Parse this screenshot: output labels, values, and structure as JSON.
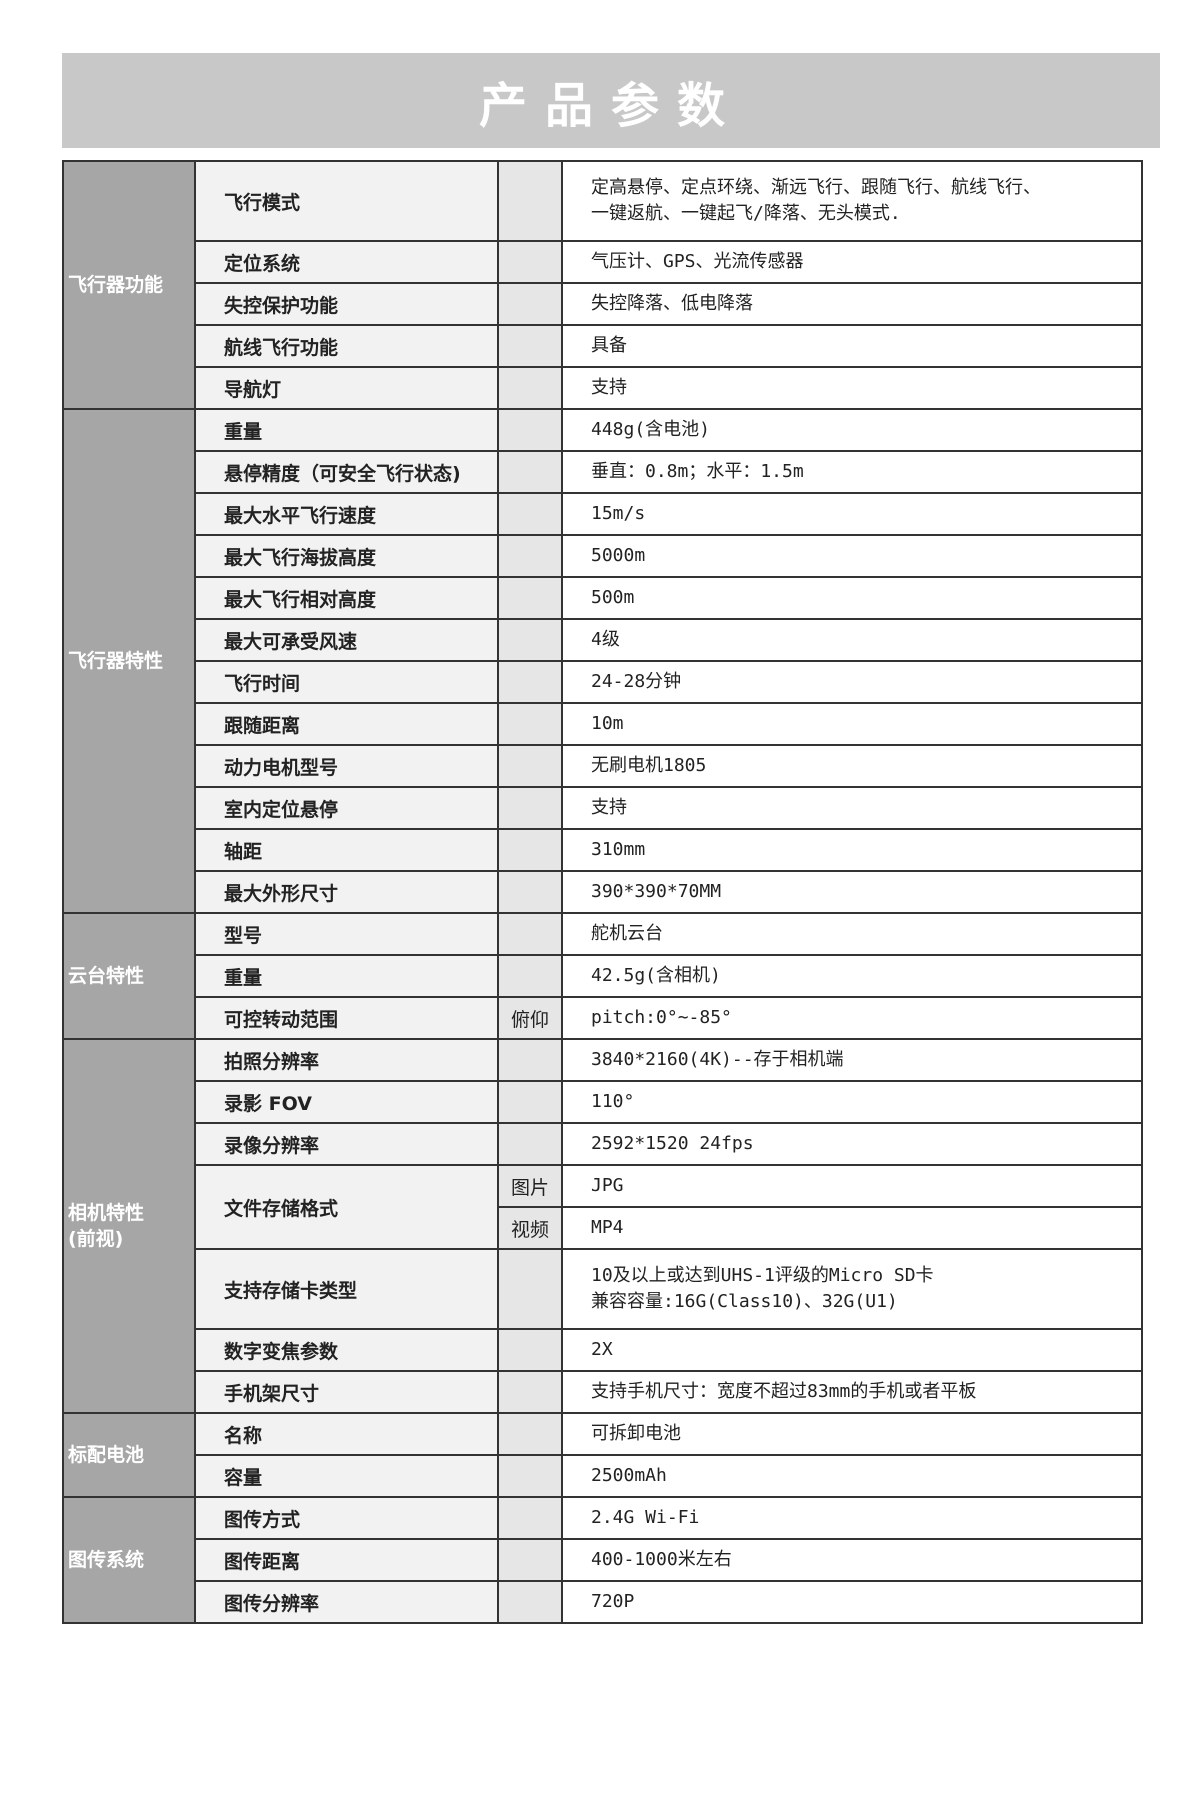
{
  "title": "产品参数",
  "groups": [
    {
      "category": "飞行器功能",
      "rows": [
        {
          "label": "飞行模式",
          "value": "定高悬停、定点环绕、渐远飞行、跟随飞行、航线飞行、\n一键返航、一键起飞/降落、无头模式.",
          "tall": true
        },
        {
          "label": "定位系统",
          "value": "气压计、GPS、光流传感器"
        },
        {
          "label": "失控保护功能",
          "value": "失控降落、低电降落"
        },
        {
          "label": "航线飞行功能",
          "value": "具备"
        },
        {
          "label": "导航灯",
          "value": "支持"
        }
      ]
    },
    {
      "category": "飞行器特性",
      "rows": [
        {
          "label": "重量",
          "value": "448g(含电池)"
        },
        {
          "label": "悬停精度（可安全飞行状态)",
          "value": "垂直：0.8m；水平：1.5m"
        },
        {
          "label": "最大水平飞行速度",
          "value": "15m/s"
        },
        {
          "label": "最大飞行海拔高度",
          "value": "5000m"
        },
        {
          "label": "最大飞行相对高度",
          "value": "500m"
        },
        {
          "label": "最大可承受风速",
          "value": "4级"
        },
        {
          "label": "飞行时间",
          "value": "24-28分钟"
        },
        {
          "label": "跟随距离",
          "value": "10m"
        },
        {
          "label": "动力电机型号",
          "value": "无刷电机1805"
        },
        {
          "label": "室内定位悬停",
          "value": "支持"
        },
        {
          "label": "轴距",
          "value": "310mm"
        },
        {
          "label": "最大外形尺寸",
          "value": "390*390*70MM"
        }
      ]
    },
    {
      "category": "云台特性",
      "rows": [
        {
          "label": "型号",
          "value": "舵机云台"
        },
        {
          "label": "重量",
          "value": "42.5g(含相机)"
        },
        {
          "label": "可控转动范围",
          "sub": "俯仰",
          "value": "pitch:0°~-85°"
        }
      ]
    },
    {
      "category": "相机特性\n(前视)",
      "rows": [
        {
          "label": "拍照分辨率",
          "value": "3840*2160(4K)--存于相机端"
        },
        {
          "label": "录影 FOV",
          "value": "110°"
        },
        {
          "label": "录像分辨率",
          "value": "2592*1520 24fps"
        },
        {
          "label": "文件存储格式",
          "subrows": [
            {
              "sub": "图片",
              "value": "JPG"
            },
            {
              "sub": "视频",
              "value": "MP4"
            }
          ]
        },
        {
          "label": "支持存储卡类型",
          "value": "10及以上或达到UHS-1评级的Micro SD卡\n兼容容量:16G(Class10)、32G(U1)",
          "tall": true
        },
        {
          "label": "数字变焦参数",
          "value": "2X"
        },
        {
          "label": "手机架尺寸",
          "value": "支持手机尺寸：宽度不超过83mm的手机或者平板"
        }
      ]
    },
    {
      "category": "标配电池",
      "rows": [
        {
          "label": "名称",
          "value": "可拆卸电池"
        },
        {
          "label": "容量",
          "value": "2500mAh"
        }
      ]
    },
    {
      "category": "图传系统",
      "rows": [
        {
          "label": "图传方式",
          "value": "2.4G Wi-Fi"
        },
        {
          "label": "图传距离",
          "value": "400-1000米左右"
        },
        {
          "label": "图传分辨率",
          "value": "720P"
        }
      ]
    }
  ]
}
